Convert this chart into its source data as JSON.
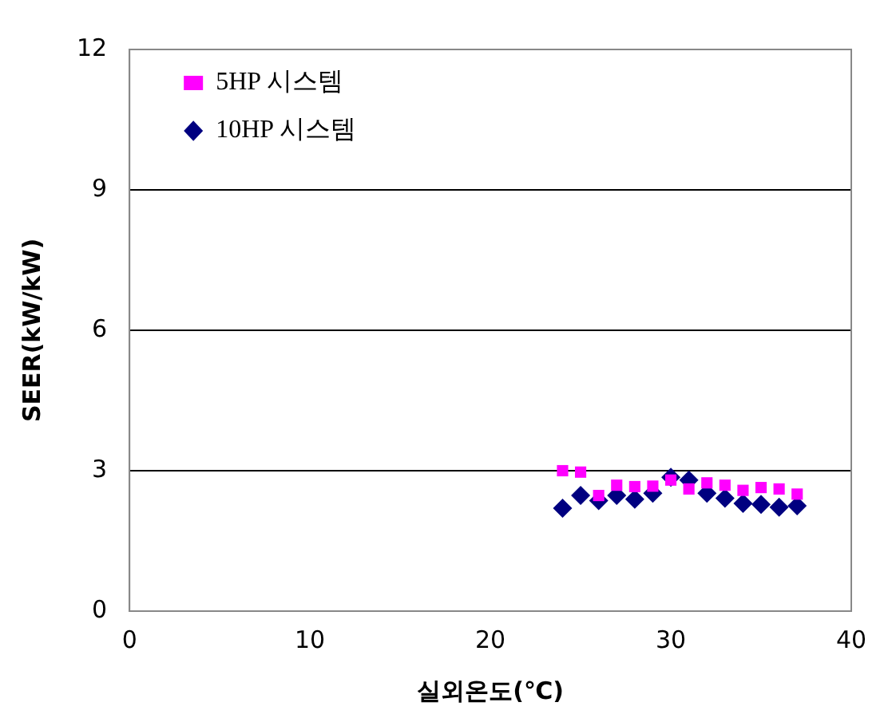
{
  "chart_data": {
    "type": "scatter",
    "xlabel": "실외온도(℃)",
    "ylabel": "SEER(kW/kW)",
    "xlim": [
      0,
      40
    ],
    "xticks": [
      0,
      10,
      20,
      30,
      40
    ],
    "ylim": [
      0,
      12
    ],
    "yticks": [
      0,
      3,
      6,
      9,
      12
    ],
    "grid": "y",
    "legend": "top left",
    "x": [
      24,
      25,
      26,
      27,
      28,
      29,
      30,
      31,
      32,
      33,
      34,
      35,
      36,
      37
    ],
    "series": [
      {
        "name": "10HP 시스템",
        "color": "#000080",
        "marker": "diamond",
        "values": [
          2.2,
          2.47,
          2.36,
          2.47,
          2.39,
          2.52,
          2.86,
          2.8,
          2.52,
          2.41,
          2.3,
          2.28,
          2.22,
          2.25
        ]
      },
      {
        "name": "5HP 시스템",
        "color": "#ff00ff",
        "marker": "square",
        "values": [
          3.0,
          2.97,
          2.47,
          2.69,
          2.66,
          2.67,
          2.8,
          2.61,
          2.74,
          2.69,
          2.58,
          2.64,
          2.61,
          2.5
        ]
      }
    ]
  }
}
